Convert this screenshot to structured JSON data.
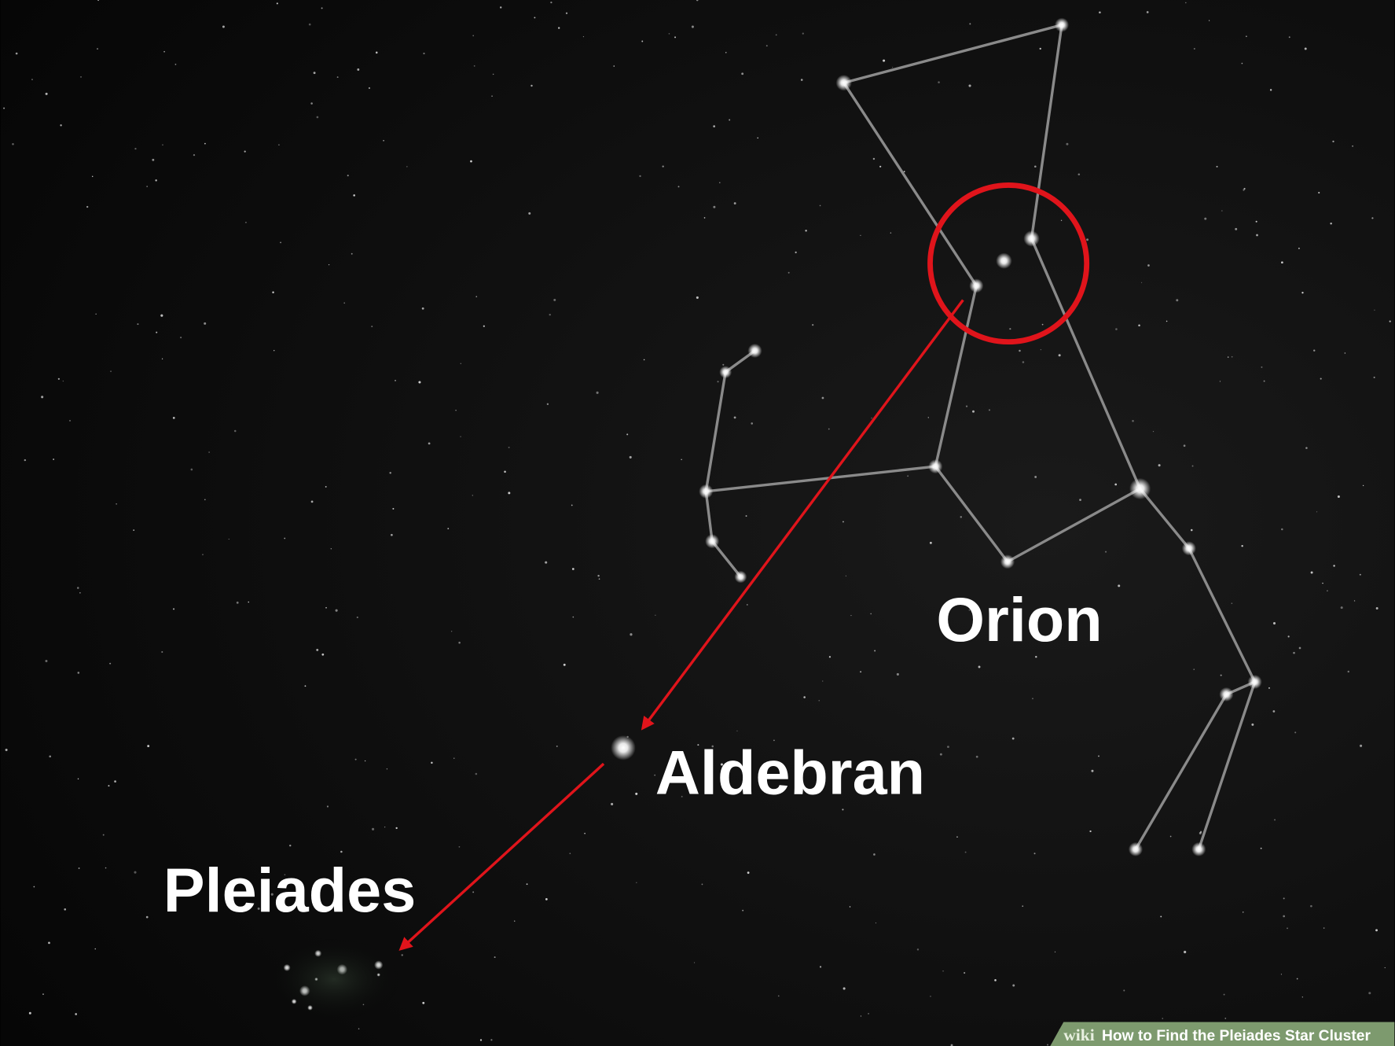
{
  "labels": {
    "orion": "Orion",
    "aldebaran": "Aldebran",
    "pleiades": "Pleiades"
  },
  "watermark": {
    "brand": "wiki",
    "title": "How to Find the Pleiades Star Cluster"
  }
}
